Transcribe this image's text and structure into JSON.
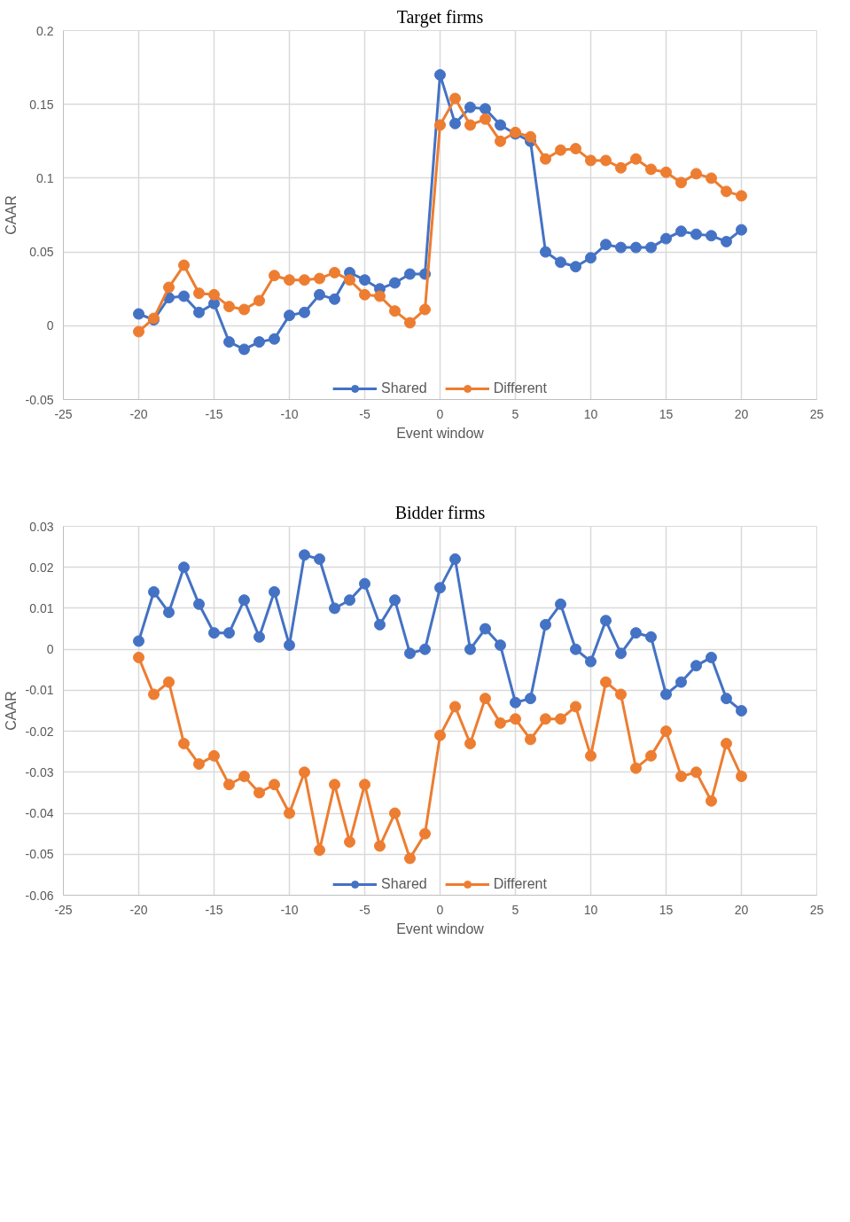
{
  "chart_data": [
    {
      "type": "line",
      "title": "Target firms",
      "xlabel": "Event window",
      "ylabel": "CAAR",
      "x": [
        -20,
        -19,
        -18,
        -17,
        -16,
        -15,
        -14,
        -13,
        -12,
        -11,
        -10,
        -9,
        -8,
        -7,
        -6,
        -5,
        -4,
        -3,
        -2,
        -1,
        0,
        1,
        2,
        3,
        4,
        5,
        6,
        7,
        8,
        9,
        10,
        11,
        12,
        13,
        14,
        15,
        16,
        17,
        18,
        19,
        20
      ],
      "series": [
        {
          "name": "Shared",
          "color": "#4472c4",
          "values": [
            0.008,
            0.004,
            0.019,
            0.02,
            0.009,
            0.015,
            -0.011,
            -0.016,
            -0.011,
            -0.009,
            0.007,
            0.009,
            0.021,
            0.018,
            0.036,
            0.031,
            0.025,
            0.029,
            0.035,
            0.035,
            0.17,
            0.137,
            0.148,
            0.147,
            0.136,
            0.13,
            0.125,
            0.05,
            0.043,
            0.04,
            0.046,
            0.055,
            0.053,
            0.053,
            0.053,
            0.059,
            0.064,
            0.062,
            0.061,
            0.057,
            0.065
          ]
        },
        {
          "name": "Different",
          "color": "#ed7d31",
          "values": [
            -0.004,
            0.005,
            0.026,
            0.041,
            0.022,
            0.021,
            0.013,
            0.011,
            0.017,
            0.034,
            0.031,
            0.031,
            0.032,
            0.036,
            0.031,
            0.021,
            0.02,
            0.01,
            0.002,
            0.011,
            0.136,
            0.154,
            0.136,
            0.14,
            0.125,
            0.131,
            0.128,
            0.113,
            0.119,
            0.12,
            0.112,
            0.112,
            0.107,
            0.113,
            0.106,
            0.104,
            0.097,
            0.103,
            0.1,
            0.091,
            0.088
          ]
        }
      ],
      "xlim": [
        -25,
        25
      ],
      "ylim": [
        -0.05,
        0.2
      ],
      "xticks": [
        -25,
        -20,
        -15,
        -10,
        -5,
        0,
        5,
        10,
        15,
        20,
        25
      ],
      "yticks": [
        -0.05,
        0,
        0.05,
        0.1,
        0.15,
        0.2
      ],
      "grid": true,
      "legend": "bottom",
      "marker": "circle",
      "line_style": "solid"
    },
    {
      "type": "line",
      "title": "Bidder firms",
      "xlabel": "Event window",
      "ylabel": "CAAR",
      "x": [
        -20,
        -19,
        -18,
        -17,
        -16,
        -15,
        -14,
        -13,
        -12,
        -11,
        -10,
        -9,
        -8,
        -7,
        -6,
        -5,
        -4,
        -3,
        -2,
        -1,
        0,
        1,
        2,
        3,
        4,
        5,
        6,
        7,
        8,
        9,
        10,
        11,
        12,
        13,
        14,
        15,
        16,
        17,
        18,
        19,
        20
      ],
      "series": [
        {
          "name": "Shared",
          "color": "#4472c4",
          "values": [
            0.002,
            0.014,
            0.009,
            0.02,
            0.011,
            0.004,
            0.004,
            0.012,
            0.003,
            0.014,
            0.001,
            0.023,
            0.022,
            0.01,
            0.012,
            0.016,
            0.006,
            0.012,
            -0.001,
            0.0,
            0.015,
            0.022,
            0.0,
            0.005,
            0.001,
            -0.013,
            -0.012,
            0.006,
            0.011,
            0.0,
            -0.003,
            0.007,
            -0.001,
            0.004,
            0.003,
            -0.011,
            -0.008,
            -0.004,
            -0.002,
            -0.012,
            -0.015
          ]
        },
        {
          "name": "Different",
          "color": "#ed7d31",
          "values": [
            -0.002,
            -0.011,
            -0.008,
            -0.023,
            -0.028,
            -0.026,
            -0.033,
            -0.031,
            -0.035,
            -0.033,
            -0.04,
            -0.03,
            -0.049,
            -0.033,
            -0.047,
            -0.033,
            -0.048,
            -0.04,
            -0.051,
            -0.045,
            -0.021,
            -0.014,
            -0.023,
            -0.012,
            -0.018,
            -0.017,
            -0.022,
            -0.017,
            -0.017,
            -0.014,
            -0.026,
            -0.008,
            -0.011,
            -0.029,
            -0.026,
            -0.02,
            -0.031,
            -0.03,
            -0.037,
            -0.023,
            -0.031
          ]
        }
      ],
      "xlim": [
        -25,
        25
      ],
      "ylim": [
        -0.06,
        0.03
      ],
      "xticks": [
        -25,
        -20,
        -15,
        -10,
        -5,
        0,
        5,
        10,
        15,
        20,
        25
      ],
      "yticks": [
        -0.06,
        -0.05,
        -0.04,
        -0.03,
        -0.02,
        -0.01,
        0,
        0.01,
        0.02,
        0.03
      ],
      "grid": true,
      "legend": "bottom",
      "marker": "circle",
      "line_style": "solid"
    }
  ]
}
